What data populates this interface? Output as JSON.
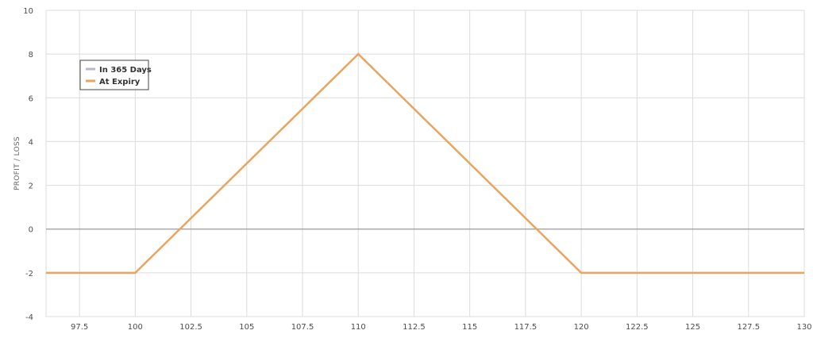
{
  "chart_data": {
    "type": "line",
    "ylabel": "PROFIT / LOSS",
    "xlabel": "",
    "xlim": [
      96,
      130
    ],
    "ylim": [
      -4,
      10
    ],
    "grid": true,
    "x_ticks": [
      97.5,
      100,
      102.5,
      105,
      107.5,
      110,
      112.5,
      115,
      117.5,
      120,
      122.5,
      125,
      127.5,
      130
    ],
    "x_tick_labels": [
      "97.5",
      "100",
      "102.5",
      "105",
      "107.5",
      "110",
      "112.5",
      "115",
      "117.5",
      "120",
      "122.5",
      "125",
      "127.5",
      "130"
    ],
    "y_ticks": [
      -4,
      -2,
      0,
      2,
      4,
      6,
      8,
      10
    ],
    "y_tick_labels": [
      "-4",
      "-2",
      "0",
      "2",
      "4",
      "6",
      "8",
      "10"
    ],
    "legend": {
      "position": "top-left",
      "entries": [
        {
          "name": "In 365 Days",
          "color": "#b8b8cc"
        },
        {
          "name": "At Expiry",
          "color": "#e8a55f"
        }
      ]
    },
    "series": [
      {
        "name": "At Expiry",
        "color": "#e8a55f",
        "x": [
          96,
          100,
          110,
          120,
          130
        ],
        "y": [
          -2,
          -2,
          8,
          -2,
          -2
        ]
      }
    ]
  },
  "colors": {
    "grid": "#dcdcdc",
    "zero_line": "#999999",
    "legend_border": "#444444"
  }
}
